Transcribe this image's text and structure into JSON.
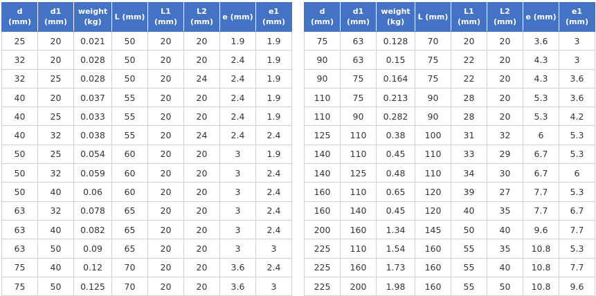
{
  "headers": [
    "d\n(mm)",
    "d1\n(mm)",
    "weight\n(kg)",
    "L (mm)",
    "L1\n(mm)",
    "L2\n(mm)",
    "e (mm)",
    "e1\n(mm)"
  ],
  "header_color": "#4472c4",
  "left_rows": [
    [
      "25",
      "20",
      "0.021",
      "50",
      "20",
      "20",
      "1.9",
      "1.9"
    ],
    [
      "32",
      "20",
      "0.028",
      "50",
      "20",
      "20",
      "2.4",
      "1.9"
    ],
    [
      "32",
      "25",
      "0.028",
      "50",
      "20",
      "24",
      "2.4",
      "1.9"
    ],
    [
      "40",
      "20",
      "0.037",
      "55",
      "20",
      "20",
      "2.4",
      "1.9"
    ],
    [
      "40",
      "25",
      "0.033",
      "55",
      "20",
      "20",
      "2.4",
      "1.9"
    ],
    [
      "40",
      "32",
      "0.038",
      "55",
      "20",
      "24",
      "2.4",
      "2.4"
    ],
    [
      "50",
      "25",
      "0.054",
      "60",
      "20",
      "20",
      "3",
      "1.9"
    ],
    [
      "50",
      "32",
      "0.059",
      "60",
      "20",
      "20",
      "3",
      "2.4"
    ],
    [
      "50",
      "40",
      "0.06",
      "60",
      "20",
      "20",
      "3",
      "2.4"
    ],
    [
      "63",
      "32",
      "0.078",
      "65",
      "20",
      "20",
      "3",
      "2.4"
    ],
    [
      "63",
      "40",
      "0.082",
      "65",
      "20",
      "20",
      "3",
      "2.4"
    ],
    [
      "63",
      "50",
      "0.09",
      "65",
      "20",
      "20",
      "3",
      "3"
    ],
    [
      "75",
      "40",
      "0.12",
      "70",
      "20",
      "20",
      "3.6",
      "2.4"
    ],
    [
      "75",
      "50",
      "0.125",
      "70",
      "20",
      "20",
      "3.6",
      "3"
    ]
  ],
  "right_rows": [
    [
      "75",
      "63",
      "0.128",
      "70",
      "20",
      "20",
      "3.6",
      "3"
    ],
    [
      "90",
      "63",
      "0.15",
      "75",
      "22",
      "20",
      "4.3",
      "3"
    ],
    [
      "90",
      "75",
      "0.164",
      "75",
      "22",
      "20",
      "4.3",
      "3.6"
    ],
    [
      "110",
      "75",
      "0.213",
      "90",
      "28",
      "20",
      "5.3",
      "3.6"
    ],
    [
      "110",
      "90",
      "0.282",
      "90",
      "28",
      "20",
      "5.3",
      "4.2"
    ],
    [
      "125",
      "110",
      "0.38",
      "100",
      "31",
      "32",
      "6",
      "5.3"
    ],
    [
      "140",
      "110",
      "0.45",
      "110",
      "33",
      "29",
      "6.7",
      "5.3"
    ],
    [
      "140",
      "125",
      "0.48",
      "110",
      "34",
      "30",
      "6.7",
      "6"
    ],
    [
      "160",
      "110",
      "0.65",
      "120",
      "39",
      "27",
      "7.7",
      "5.3"
    ],
    [
      "160",
      "140",
      "0.45",
      "120",
      "40",
      "35",
      "7.7",
      "6.7"
    ],
    [
      "200",
      "160",
      "1.34",
      "145",
      "50",
      "40",
      "9.6",
      "7.7"
    ],
    [
      "225",
      "110",
      "1.54",
      "160",
      "55",
      "35",
      "10.8",
      "5.3"
    ],
    [
      "225",
      "160",
      "1.73",
      "160",
      "55",
      "40",
      "10.8",
      "7.7"
    ],
    [
      "225",
      "200",
      "1.98",
      "160",
      "55",
      "50",
      "10.8",
      "9.6"
    ]
  ]
}
